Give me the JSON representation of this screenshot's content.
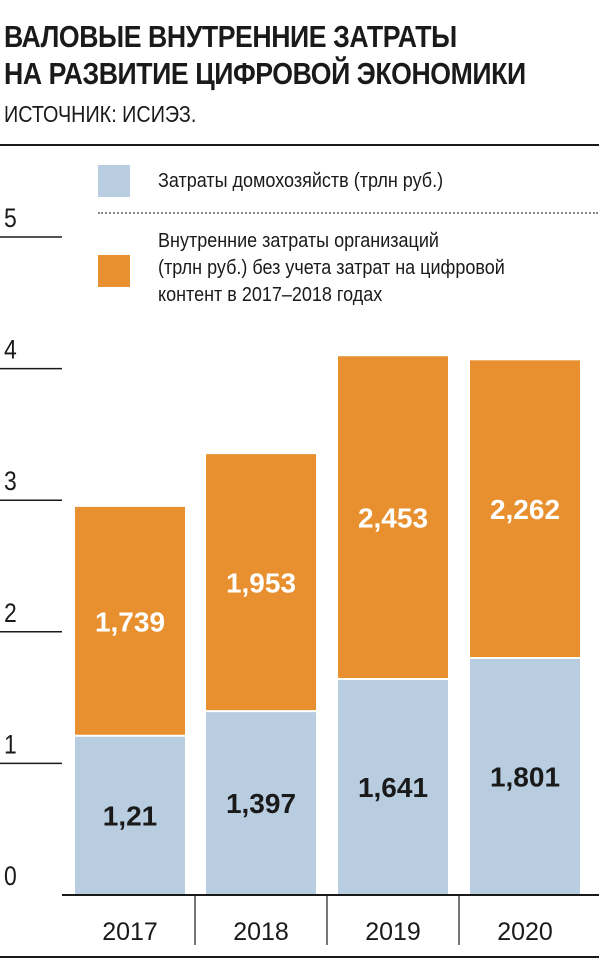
{
  "title_lines": [
    "ВАЛОВЫЕ ВНУТРЕННИЕ ЗАТРАТЫ",
    "НА РАЗВИТИЕ ЦИФРОВОЙ ЭКОНОМИКИ"
  ],
  "source": "ИСТОЧНИК: ИСИЭЗ.",
  "legend": [
    {
      "label_lines": [
        "Затраты домохозяйств (трлн руб.)"
      ],
      "color": "#b8cde0"
    },
    {
      "label_lines": [
        "Внутренние затраты организаций",
        "(трлн руб.) без учета затрат на цифровой",
        "контент в 2017–2018 годах"
      ],
      "color": "#e8902f"
    }
  ],
  "chart_data": {
    "type": "bar",
    "stacked": true,
    "categories": [
      "2017",
      "2018",
      "2019",
      "2020"
    ],
    "series": [
      {
        "name": "Затраты домохозяйств (трлн руб.)",
        "color": "#b8cde0",
        "values": [
          1.21,
          1.397,
          1.641,
          1.801
        ],
        "labels": [
          "1,21",
          "1,397",
          "1,641",
          "1,801"
        ]
      },
      {
        "name": "Внутренние затраты организаций (трлн руб.) без учета затрат на цифровой контент в 2017–2018 годах",
        "color": "#e8902f",
        "values": [
          1.739,
          1.953,
          2.453,
          2.262
        ],
        "labels": [
          "1,739",
          "1,953",
          "2,453",
          "2,262"
        ]
      }
    ],
    "yticks": [
      "0",
      "1",
      "2",
      "3",
      "4",
      "5"
    ],
    "ylim": [
      0,
      5
    ],
    "legend_position": "top",
    "grid": false
  }
}
